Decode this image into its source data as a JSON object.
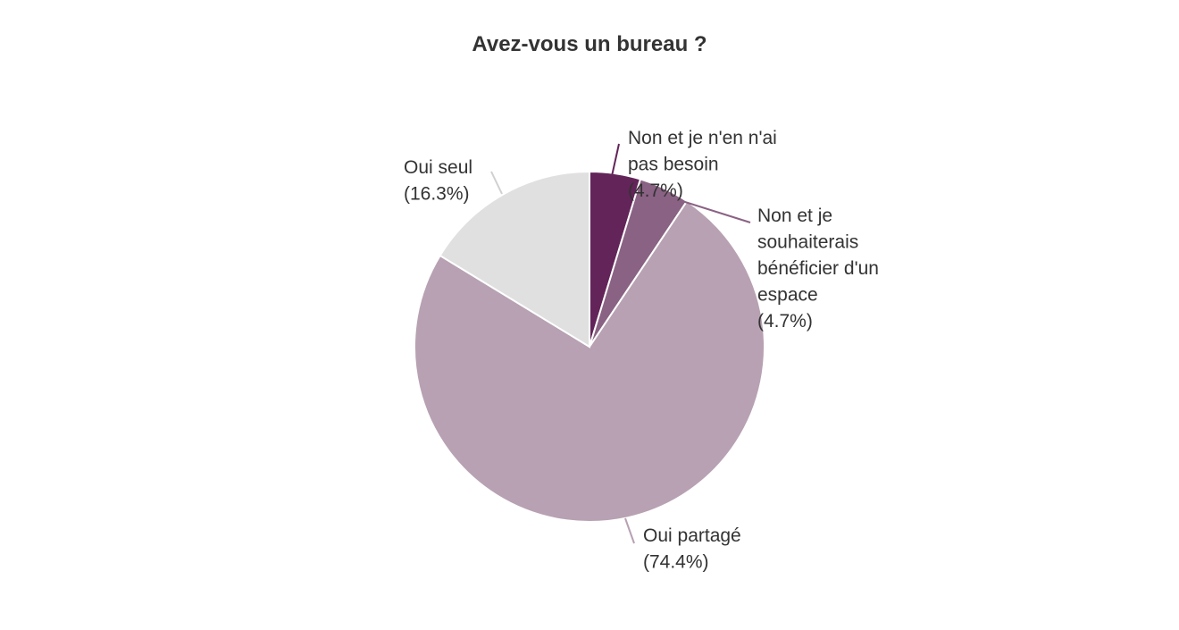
{
  "chart_data": {
    "type": "pie",
    "title": "Avez-vous un bureau ?",
    "start_angle_deg": 0,
    "direction": "clockwise",
    "slices": [
      {
        "name": "Non et je n'en n'ai pas besoin",
        "label_lines": [
          "Non et je n'en n'ai",
          "pas besoin",
          "(4.7%)"
        ],
        "percent": 4.7,
        "color": "#632459"
      },
      {
        "name": "Non et je souhaiterais bénéficier d'un espace",
        "label_lines": [
          "Non et je",
          "souhaiterais",
          "bénéficier d'un",
          "espace",
          "(4.7%)"
        ],
        "percent": 4.7,
        "color": "#8a6283"
      },
      {
        "name": "Oui partagé",
        "label_lines": [
          "Oui partagé",
          "(74.4%)"
        ],
        "percent": 74.4,
        "color": "#b7a1b2"
      },
      {
        "name": "Oui seul",
        "label_lines": [
          "Oui seul",
          "(16.3%)"
        ],
        "percent": 16.3,
        "color": "#e0e0e0"
      }
    ],
    "legend": "none",
    "labels": "outside-with-leader-lines"
  }
}
